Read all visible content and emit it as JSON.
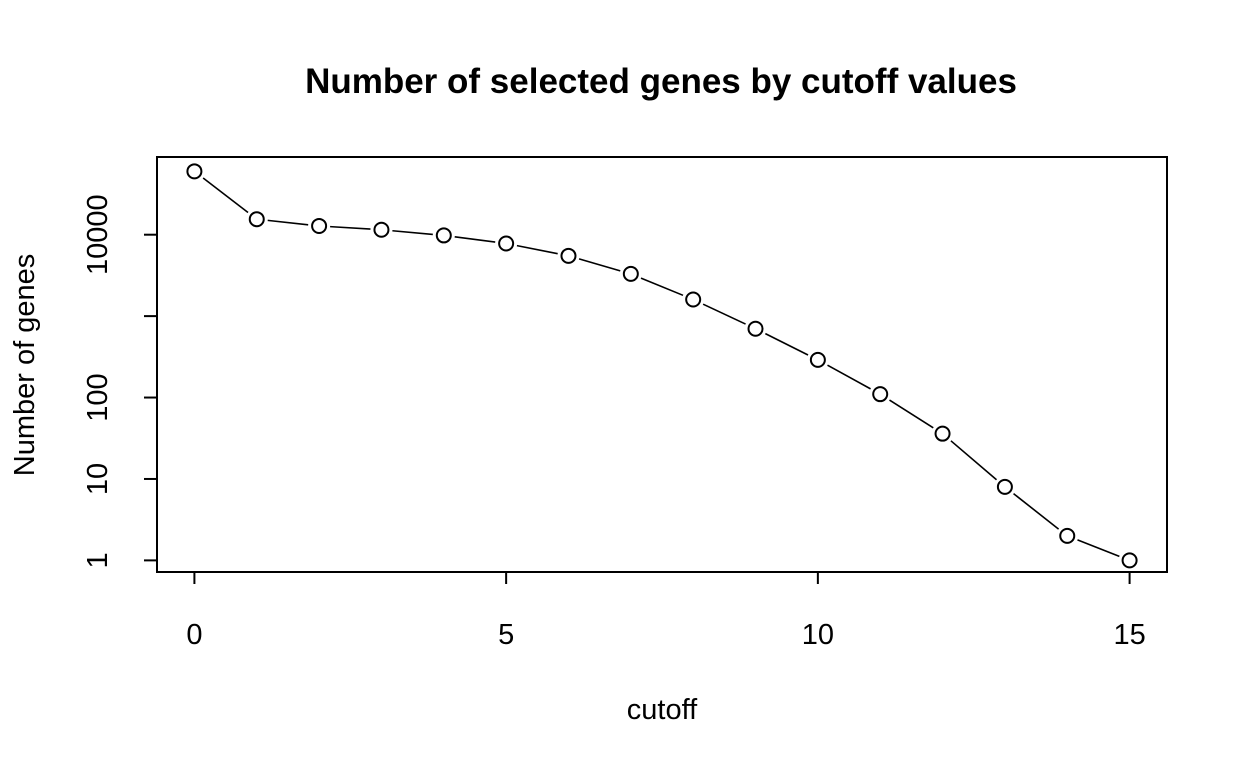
{
  "chart_data": {
    "type": "line",
    "plot_style": "both-points-and-lines",
    "title": "Number of selected genes by cutoff values",
    "xlabel": "cutoff",
    "ylabel": "Number of genes",
    "x": [
      0,
      1,
      2,
      3,
      4,
      5,
      6,
      7,
      8,
      9,
      10,
      11,
      12,
      13,
      14,
      15
    ],
    "series": [
      {
        "values": [
          60000,
          15500,
          12800,
          11500,
          9800,
          7800,
          5500,
          3300,
          1600,
          700,
          290,
          110,
          36,
          8,
          2,
          1
        ]
      }
    ],
    "xlim": [
      -0.6,
      15.6
    ],
    "ylim": [
      0.72,
      90000
    ],
    "yscale": "log",
    "x_ticks": [
      0,
      5,
      10,
      15
    ],
    "x_tick_labels": [
      "0",
      "5",
      "10",
      "15"
    ],
    "y_ticks": [
      1,
      10,
      100,
      1000,
      10000
    ],
    "y_tick_labels": [
      "1",
      "10",
      "100",
      "",
      "10000"
    ],
    "grid": false,
    "legend": "none",
    "marker": "open-circle",
    "colors": {
      "line": "#000000",
      "marker_fill": "#ffffff",
      "background": "#ffffff"
    }
  }
}
